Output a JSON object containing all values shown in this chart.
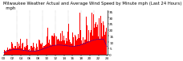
{
  "title": "Milwaukee Weather Actual and Average Wind Speed by Minute mph (Last 24 Hours)\n                       ",
  "n_points": 1440,
  "bar_color": "#ff0000",
  "line_color": "#0000cc",
  "background_color": "#ffffff",
  "grid_color": "#888888",
  "ylim": [
    0,
    36
  ],
  "yticks": [
    0,
    5,
    10,
    15,
    20,
    25,
    30,
    35
  ],
  "title_fontsize": 3.8,
  "tick_fontsize": 3.0,
  "seed": 42,
  "n_gridlines": 8
}
